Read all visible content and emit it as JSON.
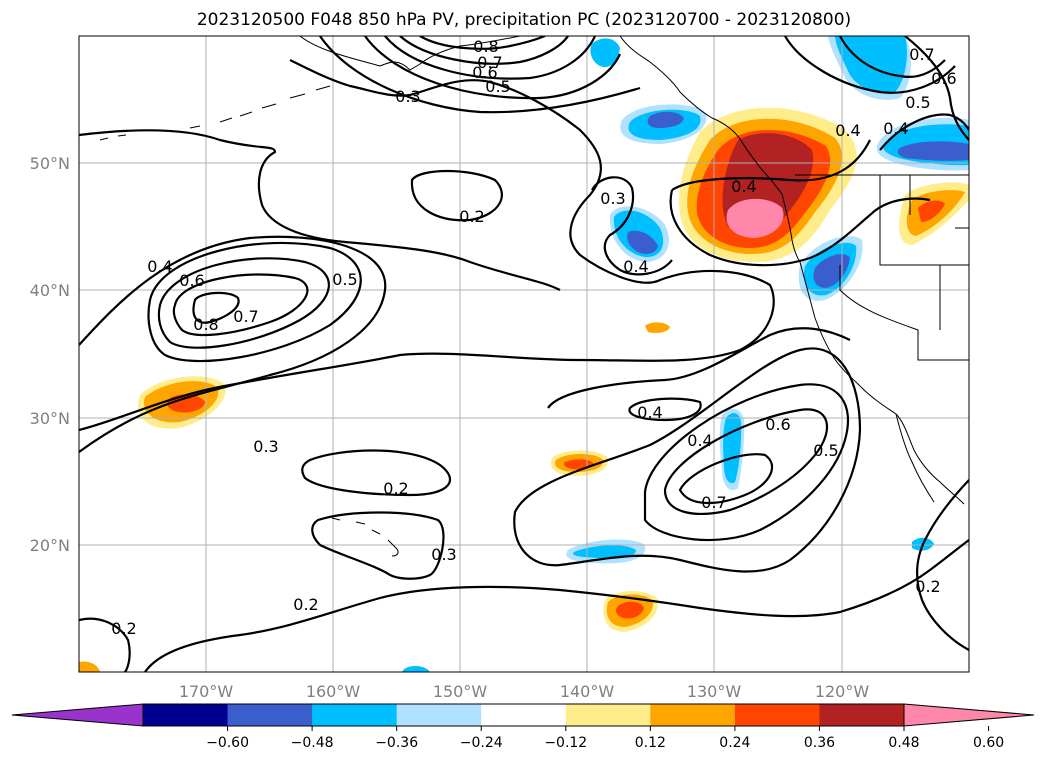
{
  "title": "2023120500 F048 850 hPa PV, precipitation PC (2023120700 - 2023120800)",
  "lon_labels": [
    "170°W",
    "160°W",
    "150°W",
    "140°W",
    "130°W",
    "120°W"
  ],
  "lat_labels": [
    "50°N",
    "40°N",
    "30°N",
    "20°N"
  ],
  "colorbar": {
    "ticks": [
      "−0.60",
      "−0.48",
      "−0.36",
      "−0.24",
      "−0.12",
      "0.12",
      "0.24",
      "0.36",
      "0.48",
      "0.60"
    ],
    "colors": [
      "#9933cc",
      "#000090",
      "#3a5fcd",
      "#00bfff",
      "#b0e2ff",
      "#ffffff",
      "#ffec8b",
      "#ffa500",
      "#ff4500",
      "#b22222",
      "#ff88aa"
    ]
  },
  "contour_labels": [
    "0.8",
    "0.7",
    "0.6",
    "0.5",
    "0.3",
    "0.4",
    "0.6",
    "0.8",
    "0.7",
    "0.5",
    "0.4",
    "0.2",
    "0.3",
    "0.4",
    "0.3",
    "0.2",
    "0.3",
    "0.2",
    "0.2",
    "0.4",
    "0.4",
    "0.6",
    "0.7",
    "0.5",
    "0.7",
    "0.6",
    "0.5",
    "0.4",
    "0.4",
    "0.2"
  ]
}
